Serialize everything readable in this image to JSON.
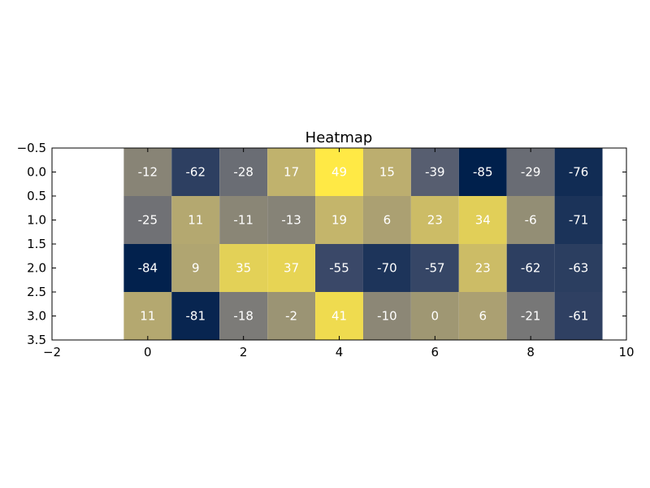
{
  "chart_data": {
    "type": "heatmap",
    "title": "Heatmap",
    "xlabel": "",
    "ylabel": "",
    "xlim": [
      -2,
      10
    ],
    "ylim": [
      3.5,
      -0.5
    ],
    "x_ticks": [
      -2,
      0,
      2,
      4,
      6,
      8,
      10
    ],
    "y_ticks": [
      -0.5,
      0.0,
      0.5,
      1.0,
      1.5,
      2.0,
      2.5,
      3.0,
      3.5
    ],
    "x_tick_labels": [
      "−2",
      "0",
      "2",
      "4",
      "6",
      "8",
      "10"
    ],
    "y_tick_labels": [
      "−0.5",
      "0.0",
      "0.5",
      "1.0",
      "1.5",
      "2.0",
      "2.5",
      "3.0",
      "3.5"
    ],
    "colormap": "cividis",
    "value_range": [
      -85,
      49
    ],
    "values": [
      [
        -12,
        -62,
        -28,
        17,
        49,
        15,
        -39,
        -85,
        -29,
        -76
      ],
      [
        -25,
        11,
        -11,
        -13,
        19,
        6,
        23,
        34,
        -6,
        -71
      ],
      [
        -84,
        9,
        35,
        37,
        -55,
        -70,
        -57,
        23,
        -62,
        -63
      ],
      [
        11,
        -81,
        -18,
        -2,
        41,
        -10,
        0,
        6,
        -21,
        -61
      ]
    ],
    "cell_text_color": "#ffffff",
    "grid": false
  }
}
